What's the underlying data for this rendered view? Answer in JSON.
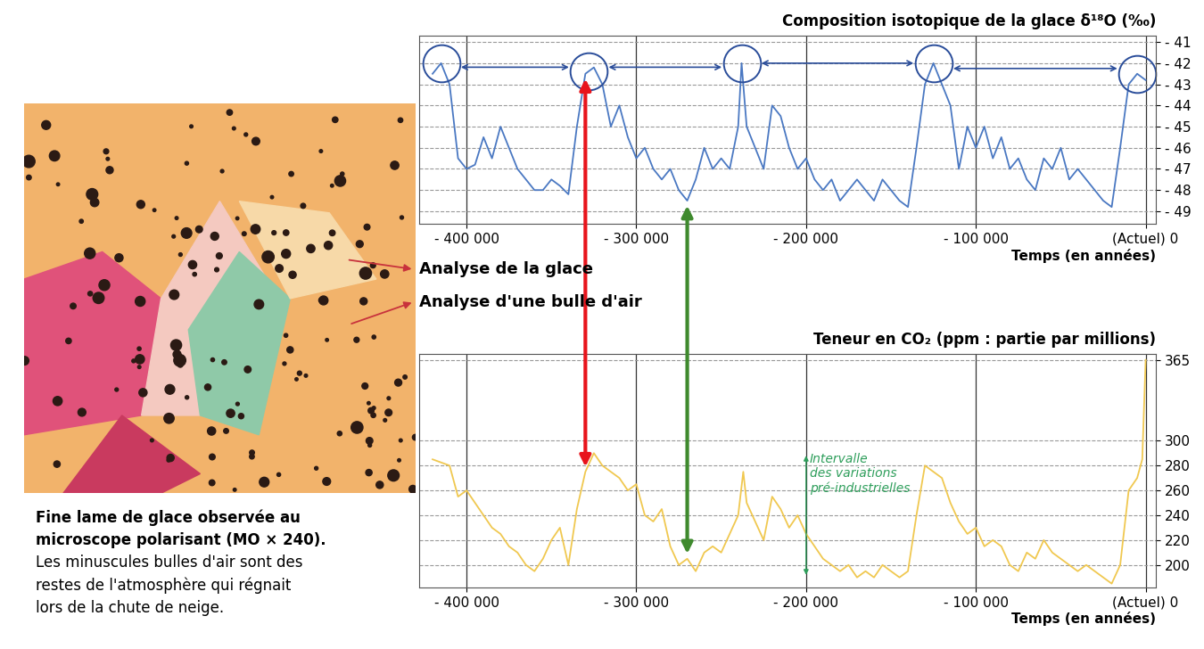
{
  "chart_data": [
    {
      "type": "line",
      "title": "Composition isotopique de la glace δ¹⁸O (‰)",
      "xlabel": "Temps (en années)",
      "color": "#4a78c2",
      "grid": true,
      "xlim": [
        -428000,
        6000
      ],
      "ylim": [
        -49.6,
        -40.7
      ],
      "xticks": [
        {
          "value": -400000,
          "label": "- 400 000"
        },
        {
          "value": -300000,
          "label": "- 300 000"
        },
        {
          "value": -200000,
          "label": "- 200 000"
        },
        {
          "value": -100000,
          "label": "- 100 000"
        },
        {
          "value": 0,
          "label": "(Actuel) 0"
        }
      ],
      "yticks": [
        {
          "value": -41,
          "label": "- 41"
        },
        {
          "value": -42,
          "label": "- 42"
        },
        {
          "value": -43,
          "label": "- 43"
        },
        {
          "value": -44,
          "label": "- 44"
        },
        {
          "value": -45,
          "label": "- 45"
        },
        {
          "value": -46,
          "label": "- 46"
        },
        {
          "value": -47,
          "label": "- 47"
        },
        {
          "value": -48,
          "label": "- 48"
        },
        {
          "value": -49,
          "label": "- 49"
        }
      ],
      "x": [
        -420000,
        -415000,
        -410000,
        -405000,
        -400000,
        -395000,
        -390000,
        -385000,
        -380000,
        -375000,
        -370000,
        -365000,
        -360000,
        -355000,
        -350000,
        -345000,
        -340000,
        -335000,
        -330000,
        -325000,
        -320000,
        -315000,
        -310000,
        -305000,
        -300000,
        -295000,
        -290000,
        -285000,
        -280000,
        -275000,
        -270000,
        -265000,
        -260000,
        -255000,
        -250000,
        -245000,
        -240000,
        -238000,
        -235000,
        -230000,
        -225000,
        -220000,
        -215000,
        -210000,
        -205000,
        -200000,
        -195000,
        -190000,
        -185000,
        -180000,
        -175000,
        -170000,
        -165000,
        -160000,
        -155000,
        -150000,
        -145000,
        -140000,
        -135000,
        -130000,
        -125000,
        -120000,
        -115000,
        -110000,
        -105000,
        -100000,
        -95000,
        -90000,
        -85000,
        -80000,
        -75000,
        -70000,
        -65000,
        -60000,
        -55000,
        -50000,
        -45000,
        -40000,
        -35000,
        -30000,
        -25000,
        -20000,
        -15000,
        -10000,
        -5000,
        0
      ],
      "values": [
        -42.5,
        -42,
        -43,
        -46.5,
        -47,
        -46.8,
        -45.5,
        -46.5,
        -45,
        -46,
        -47,
        -47.5,
        -48,
        -48,
        -47.5,
        -47.8,
        -48.2,
        -45,
        -42.5,
        -42.2,
        -43,
        -45,
        -44,
        -45.5,
        -46.5,
        -46,
        -47,
        -47.5,
        -47,
        -48,
        -48.5,
        -47.5,
        -46,
        -47,
        -46.5,
        -47,
        -45,
        -42,
        -45,
        -46,
        -47,
        -44,
        -44.5,
        -46,
        -47,
        -46.5,
        -47.5,
        -48,
        -47.5,
        -48.5,
        -48,
        -47.5,
        -48,
        -48.5,
        -47.5,
        -48,
        -48.5,
        -48.8,
        -46,
        -43,
        -42,
        -43,
        -44,
        -47,
        -45,
        -46,
        -45,
        -46.5,
        -45.5,
        -47,
        -46.5,
        -47.5,
        -48,
        -46.5,
        -47,
        -46,
        -47.5,
        -47,
        -47.5,
        -48,
        -48.5,
        -48.8,
        -46,
        -43,
        -42.5,
        -42.8
      ]
    },
    {
      "type": "line",
      "title": "Teneur en CO₂ (ppm : partie par millions)",
      "xlabel": "Temps (en années)",
      "color": "#f0c850",
      "grid": true,
      "xlim": [
        -428000,
        6000
      ],
      "ylim": [
        182,
        370
      ],
      "xticks": [
        {
          "value": -400000,
          "label": "- 400 000"
        },
        {
          "value": -300000,
          "label": "- 300 000"
        },
        {
          "value": -200000,
          "label": "- 200 000"
        },
        {
          "value": -100000,
          "label": "- 100 000"
        },
        {
          "value": 0,
          "label": "(Actuel) 0"
        }
      ],
      "yticks": [
        200,
        220,
        240,
        260,
        280,
        300,
        365
      ],
      "annotations": [
        {
          "text": "Intervalle\ndes variations\npré-industrielles",
          "x": -200000,
          "y_range": [
            190,
            290
          ],
          "color": "#2e9e5b"
        }
      ],
      "x": [
        -420000,
        -410000,
        -405000,
        -400000,
        -395000,
        -390000,
        -385000,
        -380000,
        -375000,
        -370000,
        -365000,
        -360000,
        -355000,
        -350000,
        -345000,
        -340000,
        -335000,
        -330000,
        -325000,
        -320000,
        -315000,
        -310000,
        -305000,
        -300000,
        -295000,
        -290000,
        -285000,
        -280000,
        -275000,
        -270000,
        -265000,
        -260000,
        -255000,
        -250000,
        -245000,
        -240000,
        -237000,
        -235000,
        -230000,
        -225000,
        -220000,
        -215000,
        -210000,
        -205000,
        -200000,
        -195000,
        -190000,
        -185000,
        -180000,
        -175000,
        -170000,
        -165000,
        -160000,
        -155000,
        -150000,
        -145000,
        -140000,
        -135000,
        -130000,
        -125000,
        -120000,
        -115000,
        -110000,
        -105000,
        -100000,
        -95000,
        -90000,
        -85000,
        -80000,
        -75000,
        -70000,
        -65000,
        -60000,
        -55000,
        -50000,
        -45000,
        -40000,
        -35000,
        -30000,
        -25000,
        -20000,
        -15000,
        -10000,
        -5000,
        -2000,
        0
      ],
      "values": [
        285,
        280,
        255,
        260,
        250,
        240,
        230,
        225,
        215,
        210,
        200,
        195,
        205,
        220,
        230,
        200,
        245,
        275,
        290,
        280,
        275,
        270,
        260,
        265,
        240,
        235,
        245,
        215,
        200,
        205,
        195,
        210,
        215,
        210,
        225,
        240,
        275,
        250,
        235,
        220,
        255,
        245,
        230,
        240,
        225,
        215,
        205,
        200,
        195,
        200,
        190,
        195,
        190,
        200,
        195,
        190,
        195,
        240,
        280,
        275,
        270,
        250,
        235,
        225,
        230,
        215,
        220,
        215,
        200,
        195,
        210,
        205,
        220,
        210,
        205,
        200,
        195,
        200,
        195,
        190,
        185,
        200,
        260,
        270,
        285,
        365
      ]
    }
  ],
  "figure": {
    "labels": [
      "Analyse de la glace",
      "Analyse d'une bulle d'air"
    ],
    "caption": [
      "Fine lame de glace observée au",
      "microscope polarisant (MO × 240).",
      "Les minuscules bulles d'air sont des",
      "restes de l'atmosphère qui régnait",
      "lors de la chute de neige."
    ],
    "highlighted_peaks_x": [
      -415000,
      -328000,
      -238000,
      -125000,
      -5000
    ],
    "linked_x": [
      {
        "x": -330000,
        "color": "#e8141c"
      },
      {
        "x": -270000,
        "color": "#3f8a2e"
      }
    ]
  }
}
